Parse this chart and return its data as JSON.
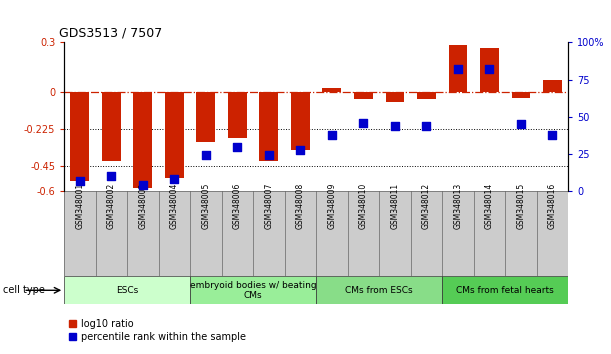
{
  "title": "GDS3513 / 7507",
  "samples": [
    "GSM348001",
    "GSM348002",
    "GSM348003",
    "GSM348004",
    "GSM348005",
    "GSM348006",
    "GSM348007",
    "GSM348008",
    "GSM348009",
    "GSM348010",
    "GSM348011",
    "GSM348012",
    "GSM348013",
    "GSM348014",
    "GSM348015",
    "GSM348016"
  ],
  "log10_ratio": [
    -0.54,
    -0.42,
    -0.58,
    -0.52,
    -0.3,
    -0.28,
    -0.42,
    -0.35,
    0.025,
    -0.045,
    -0.06,
    -0.04,
    0.285,
    0.265,
    -0.035,
    0.07
  ],
  "percentile_rank": [
    7,
    10,
    4,
    8,
    24,
    30,
    24,
    28,
    38,
    46,
    44,
    44,
    82,
    82,
    45,
    38
  ],
  "ylim_left": [
    -0.6,
    0.3
  ],
  "ylim_right": [
    0,
    100
  ],
  "yticks_left": [
    -0.6,
    -0.45,
    -0.225,
    0.0,
    0.3
  ],
  "yticks_right": [
    0,
    25,
    50,
    75,
    100
  ],
  "ytick_labels_left": [
    "-0.6",
    "-0.45",
    "-0.225",
    "0",
    "0.3"
  ],
  "ytick_labels_right": [
    "0",
    "25",
    "50",
    "75",
    "100%"
  ],
  "hline_y": 0.0,
  "dotted_lines": [
    -0.225,
    -0.45
  ],
  "bar_color": "#cc2200",
  "dot_color": "#0000cc",
  "cell_type_groups": [
    {
      "label": "ESCs",
      "start": 0,
      "end": 3,
      "color": "#ccffcc"
    },
    {
      "label": "embryoid bodies w/ beating\nCMs",
      "start": 4,
      "end": 7,
      "color": "#99ee99"
    },
    {
      "label": "CMs from ESCs",
      "start": 8,
      "end": 11,
      "color": "#88dd88"
    },
    {
      "label": "CMs from fetal hearts",
      "start": 12,
      "end": 15,
      "color": "#55cc55"
    }
  ],
  "legend_items": [
    {
      "label": "log10 ratio",
      "color": "#cc2200"
    },
    {
      "label": "percentile rank within the sample",
      "color": "#0000cc"
    }
  ],
  "cell_type_label": "cell type",
  "bar_width": 0.6,
  "dot_size": 30
}
